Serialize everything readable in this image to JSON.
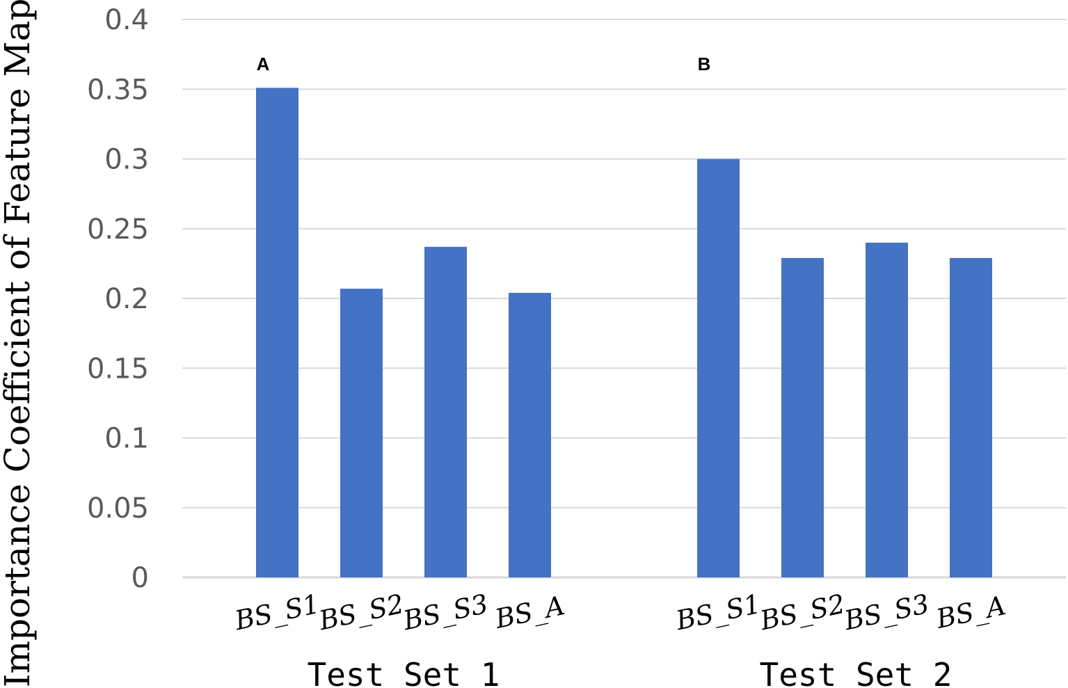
{
  "chart_data": {
    "type": "bar",
    "ylabel": "Importance Coefficient of Feature Maps",
    "ylim": [
      0,
      0.4
    ],
    "yticks": [
      "0",
      "0.05",
      "0.1",
      "0.15",
      "0.2",
      "0.25",
      "0.3",
      "0.35",
      "0.4"
    ],
    "grid": true,
    "bar_color": "#4472C4",
    "grid_color": "#D9D9D9",
    "groups": [
      {
        "panel_label": "A",
        "name": "Test Set 1",
        "categories": [
          "BS_S1",
          "BS_S2",
          "BS_S3",
          "BS_A"
        ],
        "values": [
          0.351,
          0.207,
          0.237,
          0.204
        ]
      },
      {
        "panel_label": "B",
        "name": "Test Set 2",
        "categories": [
          "BS_S1",
          "BS_S2",
          "BS_S3",
          "BS_A"
        ],
        "values": [
          0.3,
          0.229,
          0.24,
          0.229
        ]
      }
    ]
  }
}
